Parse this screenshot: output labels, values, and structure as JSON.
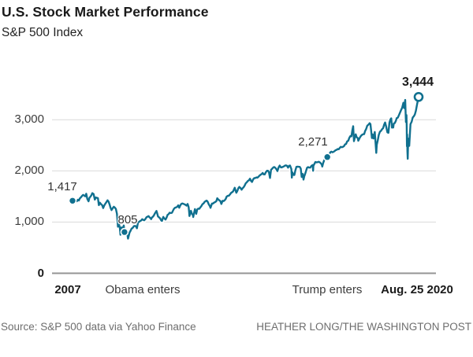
{
  "header": {
    "title": "U.S. Stock Market Performance",
    "subtitle": "S&P 500 Index"
  },
  "footer": {
    "source": "Source: S&P 500 data via Yahoo Finance",
    "credit": "HEATHER LONG/THE WASHINGTON POST"
  },
  "colors": {
    "line": "#10708f",
    "casing": "#ffffff",
    "grid": "#d9d9d9",
    "zero_axis": "#949494",
    "title_text": "#1a1a1a",
    "axis_text": "#3d3d3d",
    "muted_text": "#6e6e6e"
  },
  "chart_data": {
    "type": "line",
    "title": "U.S. Stock Market Performance",
    "subtitle": "S&P 500 Index",
    "xlabel": "",
    "ylabel": "S&P 500 Index",
    "xlim": [
      2007.0,
      2020.65
    ],
    "ylim": [
      0,
      3950
    ],
    "grid": "horizontal",
    "legend": "none",
    "yticks": [
      {
        "value": 0,
        "label": "0",
        "bold": true
      },
      {
        "value": 1000,
        "label": "1,000",
        "bold": false
      },
      {
        "value": 2000,
        "label": "2,000",
        "bold": false
      },
      {
        "value": 3000,
        "label": "3,000",
        "bold": false
      }
    ],
    "x_axis_labels": [
      {
        "label": "2007",
        "t": 2007.0,
        "bold": true
      },
      {
        "label": "Obama enters",
        "t": 2009.05,
        "bold": false
      },
      {
        "label": "Trump enters",
        "t": 2017.05,
        "bold": false
      },
      {
        "label": "Aug. 25 2020",
        "t": 2020.65,
        "bold": true
      }
    ],
    "annotations": [
      {
        "label": "1,417",
        "t": 2007.0,
        "value": 1417,
        "bold": false,
        "marker": "filled"
      },
      {
        "label": "805",
        "t": 2009.05,
        "value": 805,
        "bold": false,
        "marker": "filled"
      },
      {
        "label": "2,271",
        "t": 2017.05,
        "value": 2271,
        "bold": false,
        "marker": "filled"
      },
      {
        "label": "3,444",
        "t": 2020.65,
        "value": 3444,
        "bold": true,
        "marker": "open"
      }
    ],
    "series": [
      {
        "name": "S&P 500 Index",
        "points": [
          [
            2007.0,
            1417
          ],
          [
            2007.08,
            1438
          ],
          [
            2007.17,
            1407
          ],
          [
            2007.21,
            1437
          ],
          [
            2007.25,
            1421
          ],
          [
            2007.33,
            1482
          ],
          [
            2007.42,
            1531
          ],
          [
            2007.5,
            1503
          ],
          [
            2007.54,
            1553
          ],
          [
            2007.58,
            1455
          ],
          [
            2007.63,
            1406
          ],
          [
            2007.67,
            1474
          ],
          [
            2007.75,
            1527
          ],
          [
            2007.78,
            1565
          ],
          [
            2007.83,
            1549
          ],
          [
            2007.88,
            1440
          ],
          [
            2007.92,
            1481
          ],
          [
            2008.0,
            1468
          ],
          [
            2008.04,
            1330
          ],
          [
            2008.08,
            1379
          ],
          [
            2008.17,
            1331
          ],
          [
            2008.21,
            1273
          ],
          [
            2008.25,
            1323
          ],
          [
            2008.33,
            1386
          ],
          [
            2008.38,
            1426
          ],
          [
            2008.42,
            1400
          ],
          [
            2008.5,
            1280
          ],
          [
            2008.54,
            1234
          ],
          [
            2008.58,
            1267
          ],
          [
            2008.63,
            1300
          ],
          [
            2008.67,
            1283
          ],
          [
            2008.71,
            1256
          ],
          [
            2008.75,
            1166
          ],
          [
            2008.77,
            1057
          ],
          [
            2008.79,
            909
          ],
          [
            2008.81,
            1003
          ],
          [
            2008.83,
            969
          ],
          [
            2008.87,
            873
          ],
          [
            2008.89,
            752
          ],
          [
            2008.92,
            896
          ],
          [
            2008.96,
            888
          ],
          [
            2009.0,
            903
          ],
          [
            2009.02,
            932
          ],
          [
            2009.05,
            805
          ],
          [
            2009.08,
            826
          ],
          [
            2009.13,
            789
          ],
          [
            2009.17,
            735
          ],
          [
            2009.19,
            676
          ],
          [
            2009.25,
            798
          ],
          [
            2009.33,
            873
          ],
          [
            2009.42,
            919
          ],
          [
            2009.5,
            919
          ],
          [
            2009.54,
            879
          ],
          [
            2009.58,
            987
          ],
          [
            2009.67,
            1021
          ],
          [
            2009.75,
            1057
          ],
          [
            2009.83,
            1036
          ],
          [
            2009.92,
            1096
          ],
          [
            2010.0,
            1115
          ],
          [
            2010.08,
            1074
          ],
          [
            2010.1,
            1057
          ],
          [
            2010.17,
            1104
          ],
          [
            2010.25,
            1169
          ],
          [
            2010.31,
            1217
          ],
          [
            2010.33,
            1187
          ],
          [
            2010.37,
            1111
          ],
          [
            2010.42,
            1089
          ],
          [
            2010.5,
            1031
          ],
          [
            2010.53,
            1023
          ],
          [
            2010.58,
            1102
          ],
          [
            2010.67,
            1049
          ],
          [
            2010.75,
            1141
          ],
          [
            2010.83,
            1183
          ],
          [
            2010.92,
            1181
          ],
          [
            2011.0,
            1258
          ],
          [
            2011.08,
            1286
          ],
          [
            2011.17,
            1327
          ],
          [
            2011.21,
            1279
          ],
          [
            2011.25,
            1326
          ],
          [
            2011.33,
            1364
          ],
          [
            2011.42,
            1345
          ],
          [
            2011.5,
            1321
          ],
          [
            2011.54,
            1354
          ],
          [
            2011.58,
            1292
          ],
          [
            2011.6,
            1200
          ],
          [
            2011.61,
            1119
          ],
          [
            2011.65,
            1174
          ],
          [
            2011.67,
            1219
          ],
          [
            2011.71,
            1162
          ],
          [
            2011.75,
            1131
          ],
          [
            2011.76,
            1099
          ],
          [
            2011.83,
            1253
          ],
          [
            2011.88,
            1159
          ],
          [
            2011.92,
            1247
          ],
          [
            2012.0,
            1258
          ],
          [
            2012.08,
            1312
          ],
          [
            2012.17,
            1366
          ],
          [
            2012.25,
            1408
          ],
          [
            2012.29,
            1419
          ],
          [
            2012.33,
            1398
          ],
          [
            2012.42,
            1310
          ],
          [
            2012.44,
            1278
          ],
          [
            2012.5,
            1362
          ],
          [
            2012.58,
            1379
          ],
          [
            2012.67,
            1407
          ],
          [
            2012.71,
            1466
          ],
          [
            2012.75,
            1441
          ],
          [
            2012.83,
            1412
          ],
          [
            2012.87,
            1353
          ],
          [
            2012.92,
            1416
          ],
          [
            2013.0,
            1426
          ],
          [
            2013.08,
            1498
          ],
          [
            2013.17,
            1515
          ],
          [
            2013.25,
            1569
          ],
          [
            2013.33,
            1598
          ],
          [
            2013.4,
            1669
          ],
          [
            2013.42,
            1631
          ],
          [
            2013.46,
            1573
          ],
          [
            2013.5,
            1606
          ],
          [
            2013.58,
            1686
          ],
          [
            2013.67,
            1633
          ],
          [
            2013.75,
            1682
          ],
          [
            2013.83,
            1757
          ],
          [
            2013.92,
            1806
          ],
          [
            2014.0,
            1848
          ],
          [
            2014.08,
            1783
          ],
          [
            2014.17,
            1859
          ],
          [
            2014.25,
            1872
          ],
          [
            2014.33,
            1884
          ],
          [
            2014.42,
            1924
          ],
          [
            2014.5,
            1960
          ],
          [
            2014.58,
            1931
          ],
          [
            2014.67,
            2003
          ],
          [
            2014.75,
            1972
          ],
          [
            2014.79,
            1862
          ],
          [
            2014.83,
            2018
          ],
          [
            2014.92,
            2068
          ],
          [
            2015.0,
            2059
          ],
          [
            2015.08,
            1995
          ],
          [
            2015.17,
            2105
          ],
          [
            2015.25,
            2068
          ],
          [
            2015.33,
            2086
          ],
          [
            2015.42,
            2107
          ],
          [
            2015.5,
            2063
          ],
          [
            2015.58,
            2104
          ],
          [
            2015.63,
            2036
          ],
          [
            2015.65,
            1868
          ],
          [
            2015.67,
            1972
          ],
          [
            2015.71,
            1921
          ],
          [
            2015.75,
            1920
          ],
          [
            2015.83,
            2079
          ],
          [
            2015.92,
            2080
          ],
          [
            2016.0,
            2044
          ],
          [
            2016.04,
            1880
          ],
          [
            2016.08,
            1940
          ],
          [
            2016.11,
            1829
          ],
          [
            2016.17,
            1932
          ],
          [
            2016.25,
            2060
          ],
          [
            2016.33,
            2065
          ],
          [
            2016.42,
            2097
          ],
          [
            2016.47,
            2113
          ],
          [
            2016.49,
            2001
          ],
          [
            2016.5,
            2099
          ],
          [
            2016.58,
            2174
          ],
          [
            2016.67,
            2171
          ],
          [
            2016.75,
            2168
          ],
          [
            2016.83,
            2126
          ],
          [
            2016.85,
            2085
          ],
          [
            2016.92,
            2199
          ],
          [
            2017.0,
            2239
          ],
          [
            2017.05,
            2271
          ],
          [
            2017.08,
            2279
          ],
          [
            2017.17,
            2364
          ],
          [
            2017.25,
            2363
          ],
          [
            2017.33,
            2384
          ],
          [
            2017.42,
            2412
          ],
          [
            2017.5,
            2423
          ],
          [
            2017.58,
            2470
          ],
          [
            2017.67,
            2472
          ],
          [
            2017.75,
            2519
          ],
          [
            2017.83,
            2575
          ],
          [
            2017.92,
            2648
          ],
          [
            2018.0,
            2674
          ],
          [
            2018.07,
            2873
          ],
          [
            2018.1,
            2581
          ],
          [
            2018.17,
            2714
          ],
          [
            2018.25,
            2641
          ],
          [
            2018.27,
            2588
          ],
          [
            2018.33,
            2648
          ],
          [
            2018.42,
            2705
          ],
          [
            2018.5,
            2718
          ],
          [
            2018.58,
            2816
          ],
          [
            2018.67,
            2902
          ],
          [
            2018.72,
            2931
          ],
          [
            2018.75,
            2914
          ],
          [
            2018.81,
            2641
          ],
          [
            2018.83,
            2712
          ],
          [
            2018.87,
            2633
          ],
          [
            2018.92,
            2760
          ],
          [
            2018.98,
            2351
          ],
          [
            2019.0,
            2507
          ],
          [
            2019.08,
            2704
          ],
          [
            2019.17,
            2784
          ],
          [
            2019.25,
            2834
          ],
          [
            2019.33,
            2946
          ],
          [
            2019.42,
            2752
          ],
          [
            2019.46,
            2744
          ],
          [
            2019.5,
            2942
          ],
          [
            2019.57,
            3026
          ],
          [
            2019.6,
            2845
          ],
          [
            2019.62,
            2888
          ],
          [
            2019.65,
            2847
          ],
          [
            2019.67,
            2926
          ],
          [
            2019.75,
            2977
          ],
          [
            2019.83,
            3038
          ],
          [
            2019.92,
            3141
          ],
          [
            2020.0,
            3231
          ],
          [
            2020.05,
            3330
          ],
          [
            2020.08,
            3226
          ],
          [
            2020.12,
            3386
          ],
          [
            2020.15,
            2954
          ],
          [
            2020.17,
            3090
          ],
          [
            2020.18,
            2882
          ],
          [
            2020.19,
            2481
          ],
          [
            2020.2,
            2711
          ],
          [
            2020.21,
            2386
          ],
          [
            2020.22,
            2237
          ],
          [
            2020.24,
            2630
          ],
          [
            2020.25,
            2585
          ],
          [
            2020.28,
            2489
          ],
          [
            2020.33,
            2912
          ],
          [
            2020.42,
            3044
          ],
          [
            2020.5,
            3100
          ],
          [
            2020.58,
            3271
          ],
          [
            2020.62,
            3373
          ],
          [
            2020.65,
            3444
          ]
        ]
      }
    ]
  }
}
